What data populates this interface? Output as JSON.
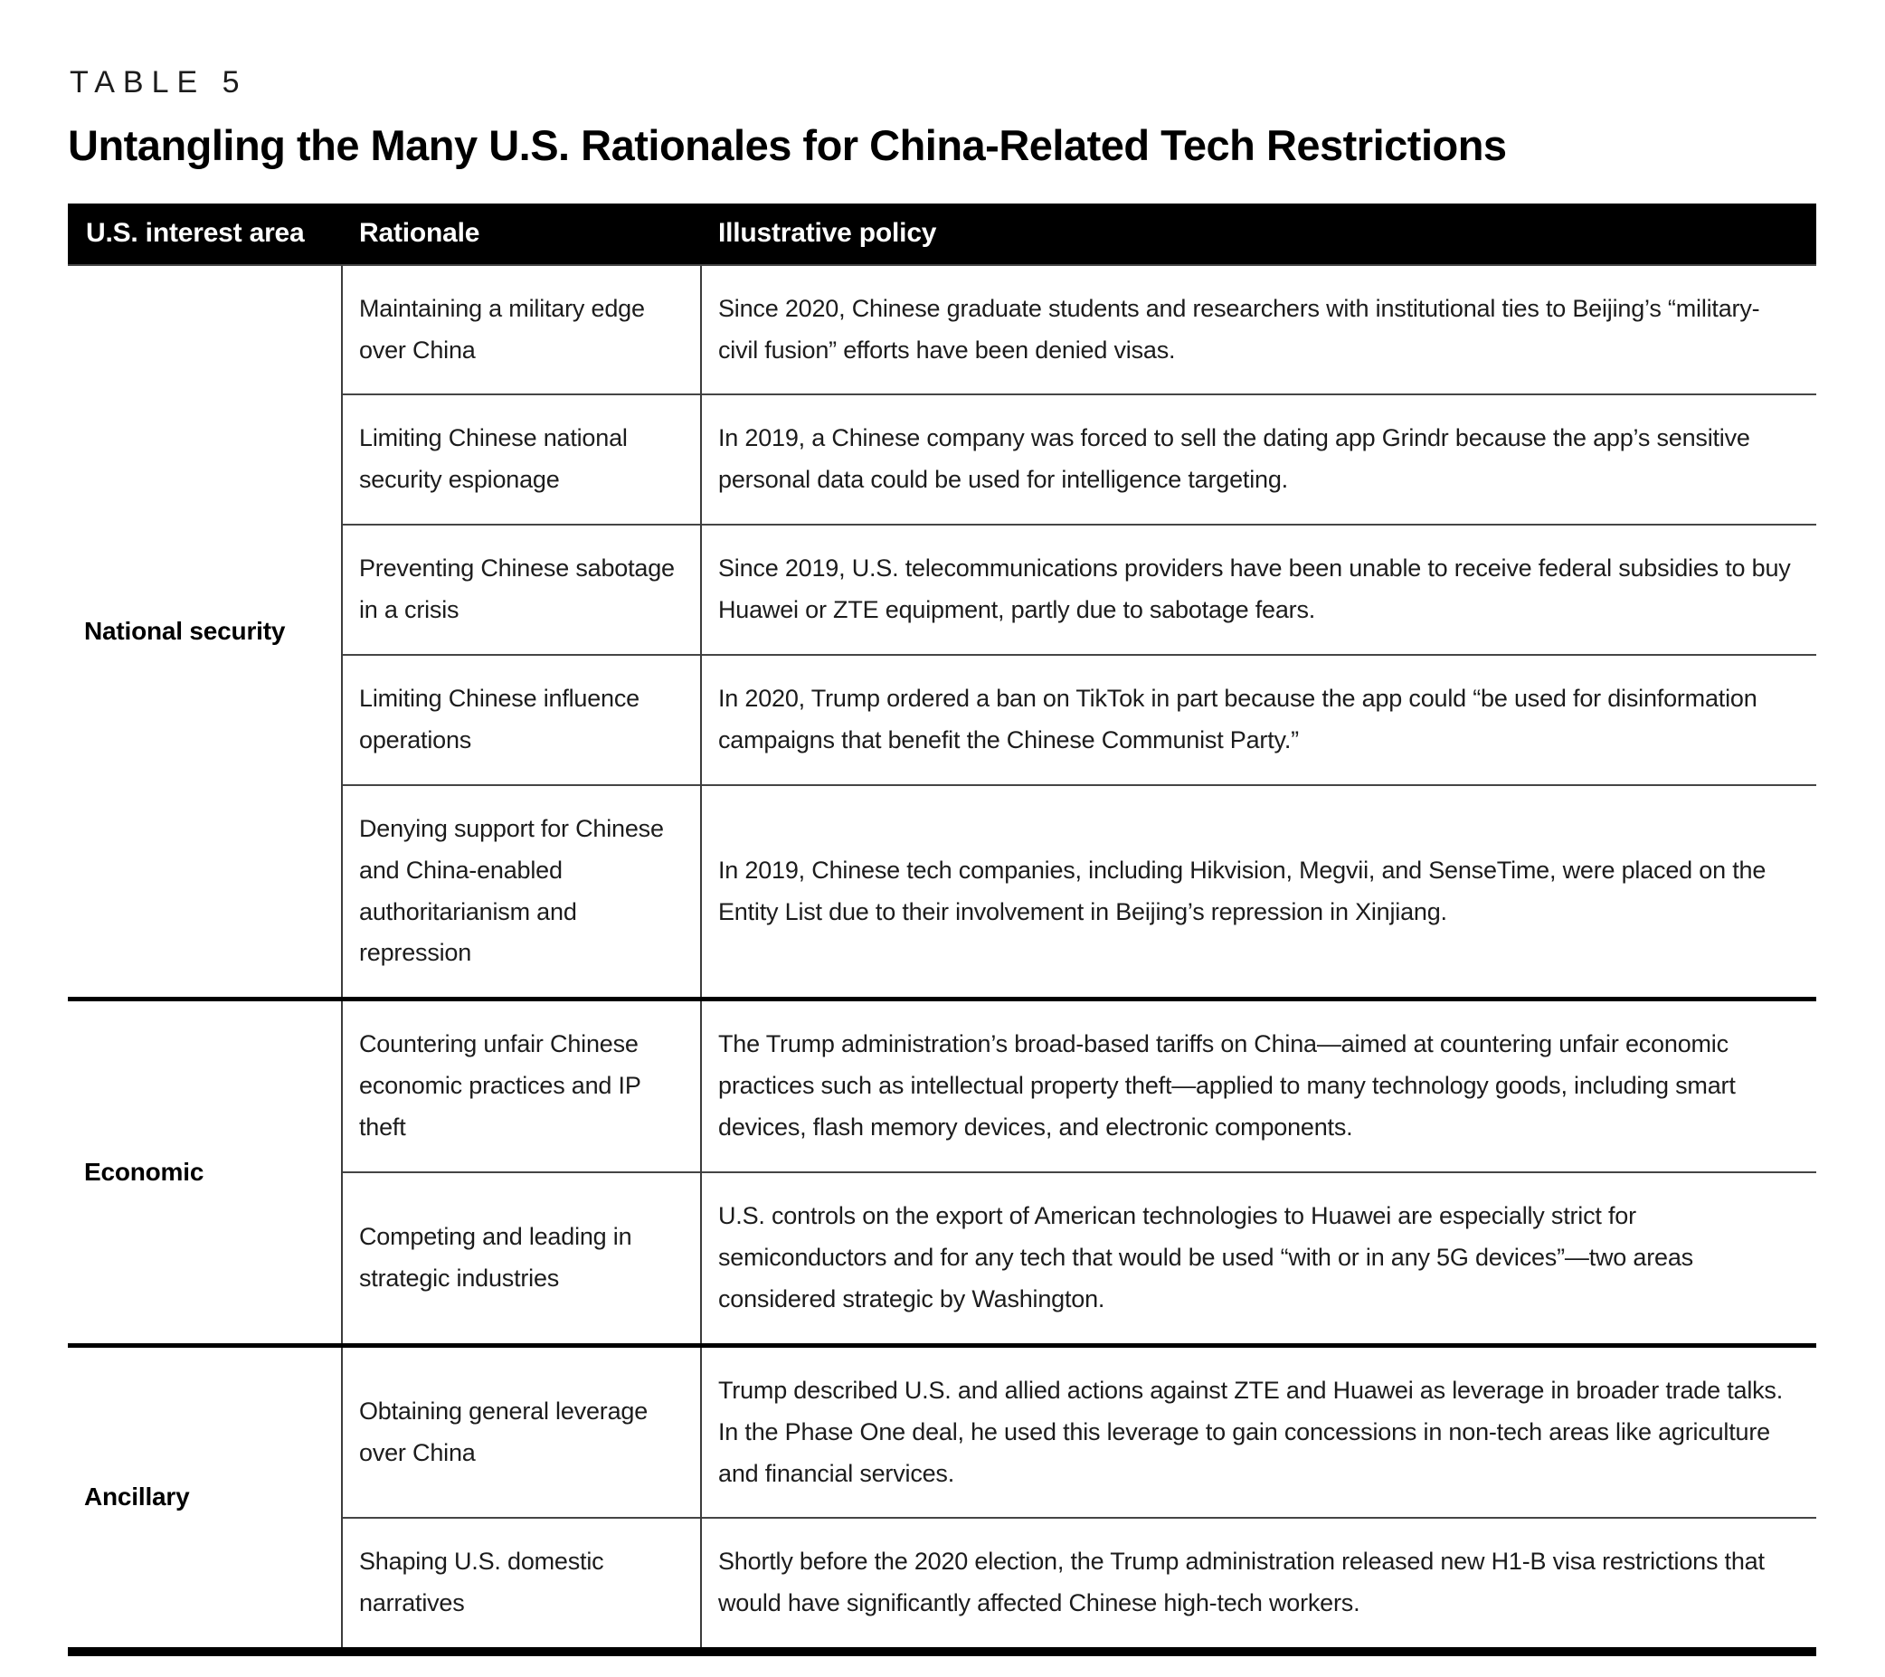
{
  "page": {
    "label": "TABLE 5",
    "title": "Untangling the Many U.S. Rationales for China-Related Tech Restrictions"
  },
  "table": {
    "columns": [
      "U.S. interest area",
      "Rationale",
      "Illustrative policy"
    ],
    "sections": [
      {
        "interest_area": "National security",
        "rows": [
          {
            "rationale": "Maintaining a military edge over China",
            "policy": "Since 2020, Chinese graduate students and researchers with institutional ties to Beijing’s “military-civil fusion” efforts have been denied visas."
          },
          {
            "rationale": "Limiting Chinese national security espionage",
            "policy": "In 2019, a Chinese company was forced to sell the dating app Grindr because the app’s sensitive personal data could be used for intelligence targeting."
          },
          {
            "rationale": "Preventing Chinese sabotage in a crisis",
            "policy": "Since 2019, U.S. telecommunications providers have been unable to receive federal subsidies to buy Huawei or ZTE equipment, partly due to sabotage fears."
          },
          {
            "rationale": "Limiting Chinese influence operations",
            "policy": "In 2020, Trump ordered a ban on TikTok in part because the app could “be used for disinformation campaigns that benefit the Chinese Communist Party.”"
          },
          {
            "rationale": "Denying support for Chinese and China-enabled authoritarianism and repression",
            "policy": "In 2019, Chinese tech companies, including Hikvision, Megvii, and SenseTime, were placed on the Entity List due to their involvement in Beijing’s repression in Xinjiang."
          }
        ]
      },
      {
        "interest_area": "Economic",
        "rows": [
          {
            "rationale": "Countering unfair Chinese economic practices and IP theft",
            "policy": "The Trump administration’s broad-based tariffs on China—aimed at countering unfair economic practices such as intellectual property theft—applied to many technology goods, including smart devices, flash memory devices, and electronic components."
          },
          {
            "rationale": "Competing and leading in strategic industries",
            "policy": "U.S. controls on the export of American technologies to Huawei are especially strict for semiconductors and for any tech that would be used “with or in any 5G devices”—two areas considered strategic by Washington."
          }
        ]
      },
      {
        "interest_area": "Ancillary",
        "rows": [
          {
            "rationale": "Obtaining general leverage over China",
            "policy": "Trump described U.S. and allied actions against ZTE and Huawei as leverage in broader trade talks. In the Phase One deal, he used this leverage to gain concessions in non-tech areas like agriculture and financial services."
          },
          {
            "rationale": "Shaping U.S. domestic narratives",
            "policy": "Shortly before the 2020 election, the Trump administration released new H1-B visa restrictions that would have significantly affected Chinese high-tech workers."
          }
        ]
      }
    ]
  },
  "colors": {
    "header_bg": "#000000",
    "header_text": "#ffffff",
    "body_text": "#1c1c1c",
    "thin_rule": "#454545",
    "thick_rule": "#000000"
  }
}
